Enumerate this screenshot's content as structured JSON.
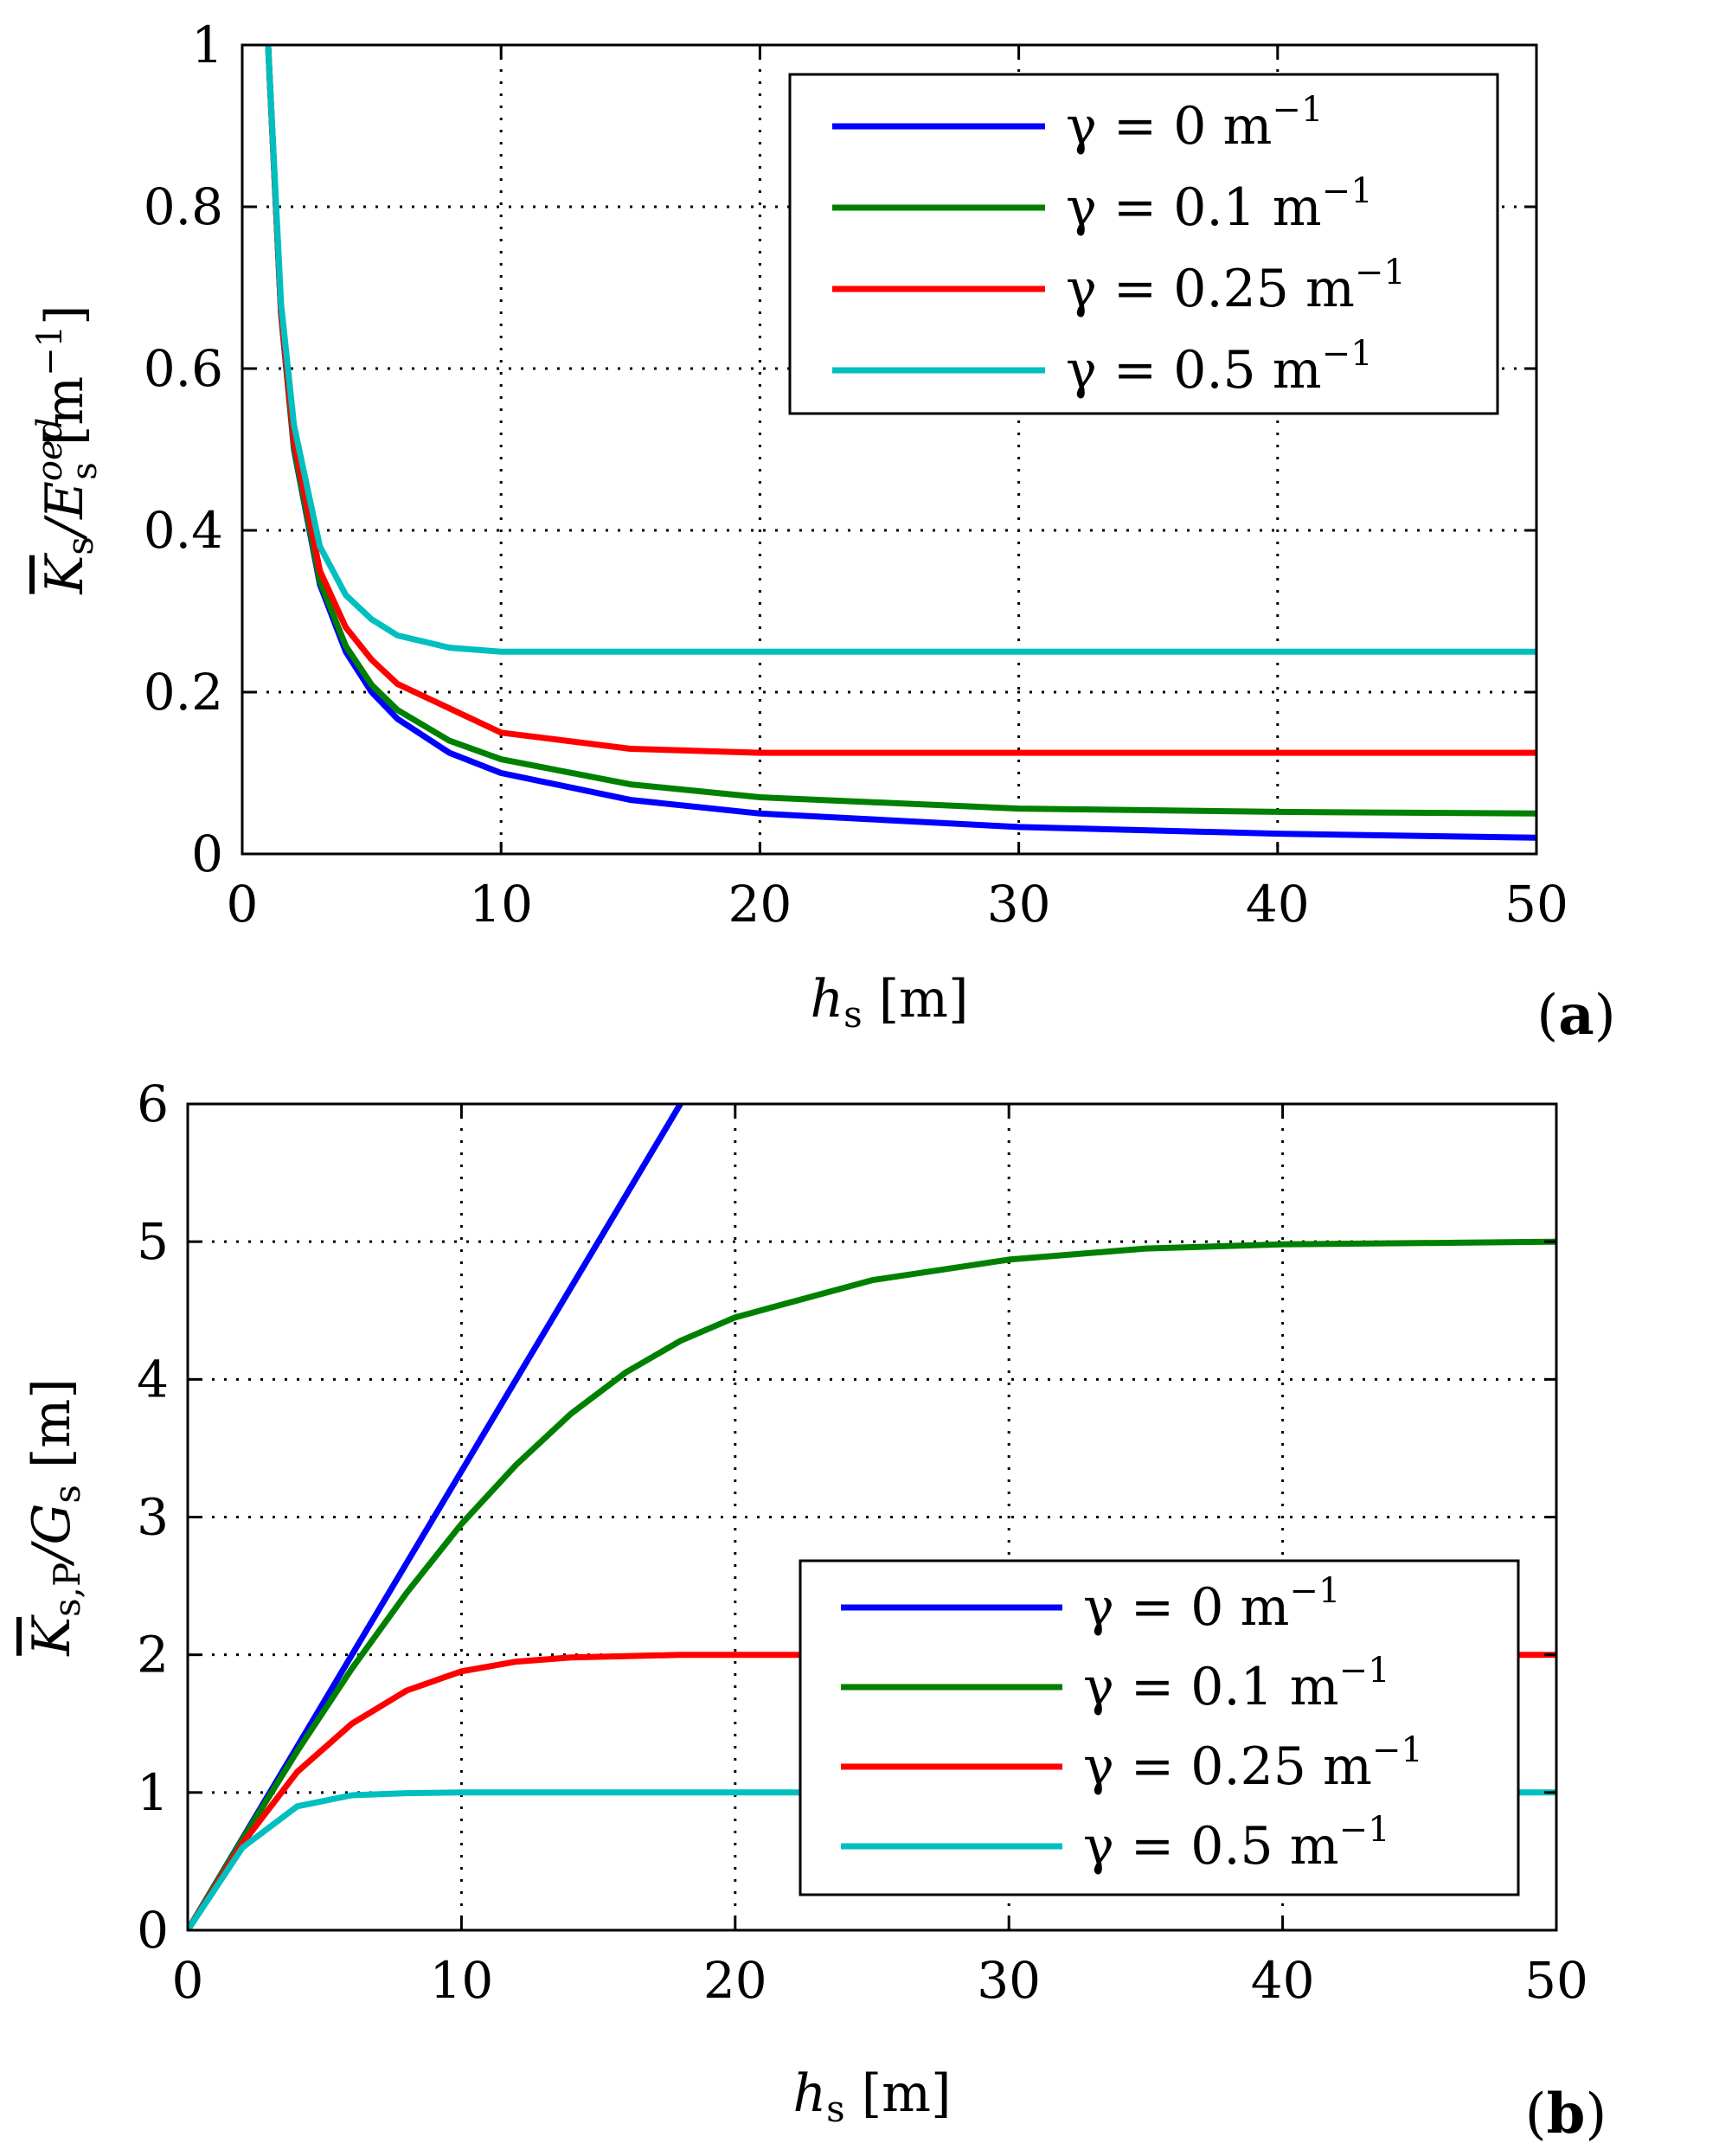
{
  "chart_data": [
    {
      "type": "line",
      "panel_label": "(a)",
      "panel_letter": "a",
      "xlabel": "h_s [m]",
      "xlabel_parts": {
        "var": "h",
        "sub": "s",
        "unit": " [m]"
      },
      "ylabel": "K̄_s/E_s^oed [m⁻¹]",
      "ylabel_parts": {
        "var": "K",
        "sub": "s",
        "mid": "/E",
        "sub2": "s",
        "sup2": "oed",
        "unit": " [m",
        "unit_sup": "−1",
        "unit_end": "]"
      },
      "xlim": [
        0,
        50
      ],
      "ylim": [
        0,
        1
      ],
      "xticks": [
        "0",
        "10",
        "20",
        "30",
        "40",
        "50"
      ],
      "yticks": [
        "0",
        "0.2",
        "0.4",
        "0.6",
        "0.8",
        "1"
      ],
      "xtick_values": [
        0,
        10,
        20,
        30,
        40,
        50
      ],
      "ytick_values": [
        0,
        0.2,
        0.4,
        0.6,
        0.8,
        1
      ],
      "grid": true,
      "legend_position": "top-right",
      "x": [
        1,
        1.5,
        2,
        3,
        4,
        5,
        6,
        8,
        10,
        15,
        20,
        30,
        40,
        50
      ],
      "series": [
        {
          "name": "γ = 0 m⁻¹",
          "label": {
            "pre": "γ = 0 m",
            "sup": "−1"
          },
          "color": "#0000ff",
          "values": [
            1.0,
            0.667,
            0.5,
            0.333,
            0.25,
            0.2,
            0.167,
            0.125,
            0.1,
            0.0667,
            0.05,
            0.0333,
            0.025,
            0.02
          ]
        },
        {
          "name": "γ = 0.1 m⁻¹",
          "label": {
            "pre": "γ = 0.1 m",
            "sup": "−1"
          },
          "color": "#008000",
          "values": [
            1.0,
            0.668,
            0.502,
            0.337,
            0.257,
            0.209,
            0.178,
            0.14,
            0.117,
            0.086,
            0.07,
            0.056,
            0.052,
            0.05
          ]
        },
        {
          "name": "γ = 0.25 m⁻¹",
          "label": {
            "pre": "γ = 0.25 m",
            "sup": "−1"
          },
          "color": "#ff0000",
          "values": [
            1.0,
            0.67,
            0.51,
            0.35,
            0.28,
            0.24,
            0.21,
            0.18,
            0.15,
            0.13,
            0.125,
            0.125,
            0.125,
            0.125
          ]
        },
        {
          "name": "γ = 0.5 m⁻¹",
          "label": {
            "pre": "γ = 0.5 m",
            "sup": "−1"
          },
          "color": "#00bfbf",
          "values": [
            1.0,
            0.68,
            0.53,
            0.38,
            0.32,
            0.29,
            0.27,
            0.255,
            0.25,
            0.25,
            0.25,
            0.25,
            0.25,
            0.25
          ]
        }
      ]
    },
    {
      "type": "line",
      "panel_label": "(b)",
      "panel_letter": "b",
      "xlabel": "h_s [m]",
      "xlabel_parts": {
        "var": "h",
        "sub": "s",
        "unit": " [m]"
      },
      "ylabel": "K̄_s,P/G_s [m]",
      "ylabel_parts": {
        "var": "K",
        "sub": "s,P",
        "mid": "/G",
        "sub2": "s",
        "sup2": "",
        "unit": " [m]",
        "unit_sup": "",
        "unit_end": ""
      },
      "xlim": [
        0,
        50
      ],
      "ylim": [
        0,
        6
      ],
      "xticks": [
        "0",
        "10",
        "20",
        "30",
        "40",
        "50"
      ],
      "yticks": [
        "0",
        "1",
        "2",
        "3",
        "4",
        "5",
        "6"
      ],
      "xtick_values": [
        0,
        10,
        20,
        30,
        40,
        50
      ],
      "ytick_values": [
        0,
        1,
        2,
        3,
        4,
        5,
        6
      ],
      "grid": true,
      "legend_position": "bottom-right",
      "x": [
        0,
        2,
        4,
        6,
        8,
        10,
        12,
        14,
        16,
        18,
        20,
        25,
        30,
        35,
        40,
        45,
        50
      ],
      "series": [
        {
          "name": "γ = 0 m⁻¹",
          "label": {
            "pre": "γ = 0 m",
            "sup": "−1"
          },
          "color": "#0000ff",
          "values": [
            0,
            0.667,
            1.333,
            2.0,
            2.667,
            3.333,
            4.0,
            4.667,
            5.333,
            6.0,
            null,
            null,
            null,
            null,
            null,
            null,
            null
          ]
        },
        {
          "name": "γ = 0.1 m⁻¹",
          "label": {
            "pre": "γ = 0.1 m",
            "sup": "−1"
          },
          "color": "#008000",
          "values": [
            0,
            0.66,
            1.3,
            1.9,
            2.45,
            2.95,
            3.38,
            3.75,
            4.05,
            4.28,
            4.45,
            4.72,
            4.87,
            4.95,
            4.98,
            4.99,
            5.0
          ]
        },
        {
          "name": "γ = 0.25 m⁻¹",
          "label": {
            "pre": "γ = 0.25 m",
            "sup": "−1"
          },
          "color": "#ff0000",
          "values": [
            0,
            0.63,
            1.15,
            1.5,
            1.74,
            1.88,
            1.95,
            1.98,
            1.99,
            2.0,
            2.0,
            2.0,
            2.0,
            2.0,
            2.0,
            2.0,
            2.0
          ]
        },
        {
          "name": "γ = 0.5 m⁻¹",
          "label": {
            "pre": "γ = 0.5 m",
            "sup": "−1"
          },
          "color": "#00bfbf",
          "values": [
            0,
            0.6,
            0.9,
            0.98,
            0.995,
            1.0,
            1.0,
            1.0,
            1.0,
            1.0,
            1.0,
            1.0,
            1.0,
            1.0,
            1.0,
            1.0,
            1.0
          ]
        }
      ]
    }
  ]
}
